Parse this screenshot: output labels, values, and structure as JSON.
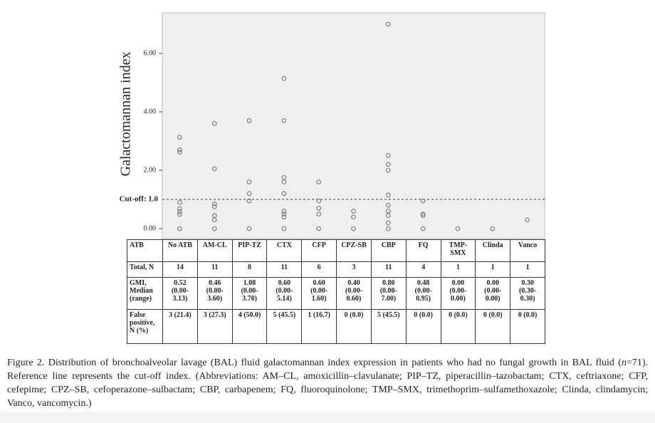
{
  "chart_data": {
    "type": "dotplot",
    "y_label": "Galactomannan index",
    "categories": [
      "No ATB",
      "AM-CL",
      "PIP-TZ",
      "CTX",
      "CFP",
      "CPZ-SB",
      "CBP",
      "FQ",
      "TMP-SMX",
      "Clinda",
      "Vanco"
    ],
    "values": [
      [
        3.13,
        2.7,
        2.62,
        0.9,
        0.68,
        0.58,
        0.49,
        0
      ],
      [
        3.6,
        2.05,
        0.85,
        0.75,
        0.45,
        0.3,
        0
      ],
      [
        3.7,
        1.6,
        1.2,
        0.95,
        0
      ],
      [
        5.14,
        3.7,
        1.75,
        1.6,
        1.2,
        0.6,
        0.5,
        0.4,
        0
      ],
      [
        1.6,
        0.95,
        0.7,
        0.5,
        0
      ],
      [
        0.6,
        0.4,
        0
      ],
      [
        7.0,
        2.5,
        2.2,
        2.0,
        1.15,
        0.8,
        0.6,
        0.45,
        0.2,
        0
      ],
      [
        0.95,
        0.5,
        0.45,
        0
      ],
      [
        0
      ],
      [
        0
      ],
      [
        0.3
      ]
    ],
    "color": "#777777",
    "ylim": [
      -0.34,
      7.39
    ],
    "yticks": [
      {
        "value": 0,
        "label": "0.00"
      },
      {
        "value": 2,
        "label": "2.00"
      },
      {
        "value": 4,
        "label": "4.00"
      },
      {
        "value": 6,
        "label": "6.00"
      }
    ],
    "reference_line": {
      "value": 1.0,
      "label": "Cut-off: 1.0"
    }
  },
  "table": {
    "header": "ATB",
    "rows": [
      {
        "label": "Total, N",
        "cells": [
          "14",
          "11",
          "8",
          "11",
          "6",
          "3",
          "11",
          "4",
          "1",
          "1",
          "1"
        ]
      },
      {
        "label": "GMI, Median (range)",
        "cells": [
          "0.52 (0.00-3.13)",
          "0.46 (0.00-3.60)",
          "1.08 (0.00-3.70)",
          "0.60 (0.00-5.14)",
          "0.60 (0.00-1.60)",
          "0.40 (0.00-0.60)",
          "0.80 (0.00-7.00)",
          "0.48 (0.00-0.95)",
          "0.00 (0.00-0.00)",
          "0.00 (0.00-0.00)",
          "0.30 (0.30-0.30)"
        ]
      },
      {
        "label": "False positive, N (%)",
        "cells": [
          "3 (21.4)",
          "3 (27.3)",
          "4 (50.0)",
          "5 (45.5)",
          "1 (16.7)",
          "0 (0.0)",
          "5 (45.5)",
          "0 (0.0)",
          "0 (0.0)",
          "0 (0.0)",
          "0 (0.0)"
        ]
      }
    ]
  },
  "caption": [
    "Figure 2. Distribution of bronchoalveolar lavage (BAL) fluid galactomannan index expression in patients who had no fungal growth in BAL fluid (",
    "n",
    "=71). Reference line represents the cut-off index. (Abbreviations: AM–CL, amoxicillin–clavulanate; PIP–TZ, piperacillin–tazobactam; CTX, ceftriaxone; CFP, cefepime; CPZ–SB, cefoperazone–sulbactam; CBP, carbapenem; FQ, fluoroquinolone; TMP–SMX, trimethoprim–sulfamethoxazole; Clinda, clindamycin; Vanco, vancomycin.)"
  ]
}
